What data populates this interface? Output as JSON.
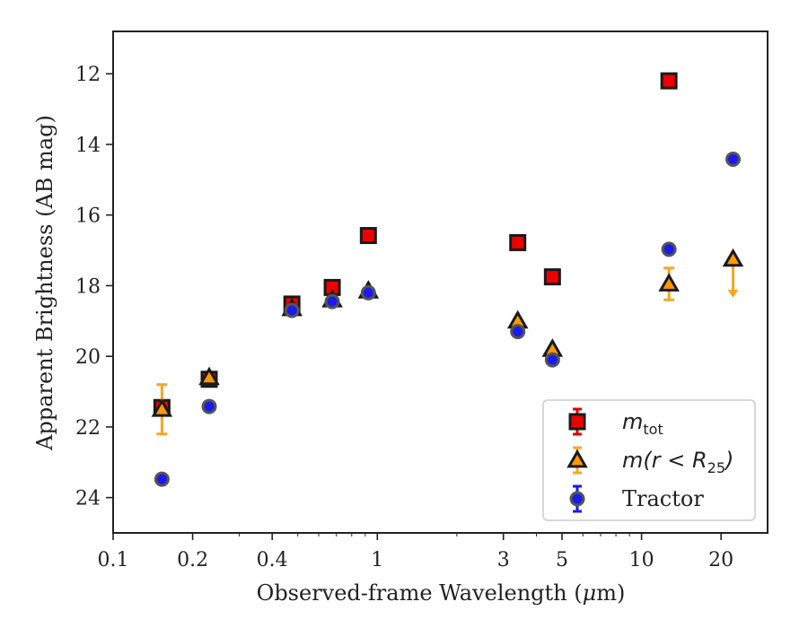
{
  "chart_data": {
    "type": "scatter",
    "xlabel_prefix": "Observed-frame Wavelength (",
    "xlabel_mu": "μ",
    "xlabel_suffix": "m)",
    "ylabel": "Apparent Brightness (AB mag)",
    "x_scale": "log",
    "y_inverted": true,
    "xlim": [
      0.1,
      30
    ],
    "ylim": [
      25.0,
      10.8
    ],
    "x_ticks": [
      {
        "value": 0.1,
        "label": "0.1"
      },
      {
        "value": 0.2,
        "label": "0.2"
      },
      {
        "value": 0.4,
        "label": "0.4"
      },
      {
        "value": 1,
        "label": "1"
      },
      {
        "value": 3,
        "label": "3"
      },
      {
        "value": 5,
        "label": "5"
      },
      {
        "value": 10,
        "label": "10"
      },
      {
        "value": 20,
        "label": "20"
      }
    ],
    "y_ticks": [
      {
        "value": 12,
        "label": "12"
      },
      {
        "value": 14,
        "label": "14"
      },
      {
        "value": 16,
        "label": "16"
      },
      {
        "value": 18,
        "label": "18"
      },
      {
        "value": 20,
        "label": "20"
      },
      {
        "value": 22,
        "label": "22"
      },
      {
        "value": 24,
        "label": "24"
      }
    ],
    "grid": false,
    "legend_position": "bottom-right",
    "series": [
      {
        "key": "mtot",
        "name_main": "m",
        "name_sub": "tot",
        "marker": "square",
        "color": "#ee0000",
        "edge_color": "#1a1a1a",
        "errbar_color": "#dd0000",
        "points": [
          {
            "x": 0.153,
            "y": 21.45,
            "err": 0.0
          },
          {
            "x": 0.231,
            "y": 20.65,
            "err": 0.0
          },
          {
            "x": 0.475,
            "y": 18.52,
            "err": 0.0
          },
          {
            "x": 0.675,
            "y": 18.05,
            "err": 0.0
          },
          {
            "x": 0.925,
            "y": 16.58,
            "err": 0.0
          },
          {
            "x": 3.4,
            "y": 16.78,
            "err": 0.0
          },
          {
            "x": 4.6,
            "y": 17.75,
            "err": 0.0
          },
          {
            "x": 12.7,
            "y": 12.2,
            "err": 0.0
          }
        ]
      },
      {
        "key": "mr25",
        "name_main": "m(r < R",
        "name_sub": "25",
        "name_close": ")",
        "marker": "triangle",
        "color": "#ff9900",
        "edge_color": "#1a1a1a",
        "errbar_color": "#f5a623",
        "points": [
          {
            "x": 0.153,
            "y": 21.5,
            "err": 0.7
          },
          {
            "x": 0.231,
            "y": 20.6,
            "err": 0.0
          },
          {
            "x": 0.475,
            "y": 18.65,
            "err": 0.0
          },
          {
            "x": 0.675,
            "y": 18.4,
            "err": 0.0
          },
          {
            "x": 0.925,
            "y": 18.15,
            "err": 0.0
          },
          {
            "x": 3.4,
            "y": 19.0,
            "err": 0.0
          },
          {
            "x": 4.6,
            "y": 19.8,
            "err": 0.0
          },
          {
            "x": 12.7,
            "y": 17.95,
            "err": 0.45
          },
          {
            "x": 22.2,
            "y": 17.25,
            "err": 0.0,
            "upper_limit": true
          }
        ]
      },
      {
        "key": "tractor",
        "name": "Tractor",
        "marker": "circle",
        "color": "#1a1aee",
        "edge_color": "#555555",
        "errbar_color": "#1a1aee",
        "points": [
          {
            "x": 0.153,
            "y": 23.48,
            "err": 0.0
          },
          {
            "x": 0.231,
            "y": 21.42,
            "err": 0.0
          },
          {
            "x": 0.475,
            "y": 18.7,
            "err": 0.0
          },
          {
            "x": 0.675,
            "y": 18.45,
            "err": 0.0
          },
          {
            "x": 0.925,
            "y": 18.2,
            "err": 0.0
          },
          {
            "x": 3.4,
            "y": 19.3,
            "err": 0.0
          },
          {
            "x": 4.6,
            "y": 20.1,
            "err": 0.0
          },
          {
            "x": 12.7,
            "y": 16.97,
            "err": 0.0
          },
          {
            "x": 22.2,
            "y": 14.42,
            "err": 0.0
          }
        ]
      }
    ]
  }
}
